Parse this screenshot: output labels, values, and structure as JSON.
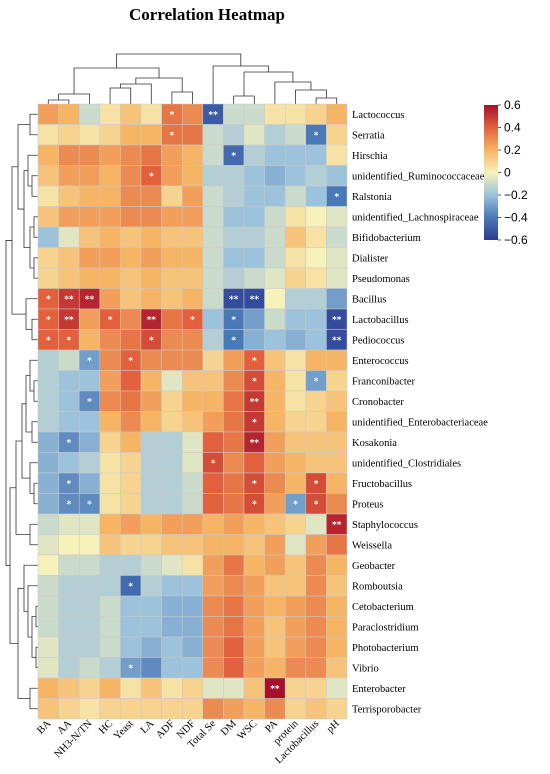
{
  "chart_data": {
    "type": "heatmap",
    "title": "Correlation Heatmap",
    "x_categories": [
      "BA",
      "AA",
      "NH3-N/TN",
      "HC",
      "Yeast",
      "LA",
      "ADF",
      "NDF",
      "Total Se",
      "DM",
      "WSC",
      "PA",
      "protein",
      "Lactobacillus",
      "pH"
    ],
    "y_categories": [
      "Lactococcus",
      "Serratia",
      "Hirschia",
      "unidentified_Ruminococcaceae",
      "Ralstonia",
      "unidentified_Lachnospiraceae",
      "Bifidobacterium",
      "Dialister",
      "Pseudomonas",
      "Bacillus",
      "Lactobacillus",
      "Pediococcus",
      "Enterococcus",
      "Franconibacter",
      "Cronobacter",
      "unidentified_Enterobacteriaceae",
      "Kosakonia",
      "unidentified_Clostridiales",
      "Fructobacillus",
      "Proteus",
      "Staphylococcus",
      "Weissella",
      "Geobacter",
      "Romboutsia",
      "Cetobacterium",
      "Paraclostridium",
      "Photobacterium",
      "Vibrio",
      "Enterobacter",
      "Terrisporobacter"
    ],
    "values": [
      [
        0.25,
        0.2,
        -0.1,
        0.05,
        0.15,
        0.05,
        0.35,
        0.3,
        -0.5,
        -0.1,
        -0.1,
        0.05,
        0.05,
        0.1,
        0.2
      ],
      [
        0.05,
        0.1,
        0.05,
        0.1,
        0.2,
        0.2,
        0.35,
        0.35,
        -0.1,
        -0.15,
        -0.05,
        -0.15,
        -0.1,
        -0.4,
        0.1
      ],
      [
        0.2,
        0.3,
        0.3,
        0.25,
        0.3,
        0.35,
        0.25,
        0.2,
        -0.1,
        -0.45,
        -0.15,
        -0.2,
        -0.2,
        -0.2,
        0.05
      ],
      [
        0.15,
        0.25,
        0.25,
        0.2,
        0.3,
        0.4,
        0.25,
        0.2,
        -0.15,
        -0.15,
        -0.2,
        -0.25,
        -0.2,
        -0.15,
        -0.2
      ],
      [
        0.05,
        0.15,
        0.2,
        0.2,
        0.3,
        0.3,
        0.1,
        0.25,
        -0.1,
        -0.15,
        -0.2,
        -0.2,
        -0.1,
        -0.2,
        -0.4
      ],
      [
        0.15,
        0.25,
        0.25,
        0.25,
        0.3,
        0.3,
        0.25,
        0.25,
        -0.1,
        -0.2,
        -0.2,
        -0.1,
        0.05,
        0.0,
        -0.05
      ],
      [
        -0.2,
        -0.05,
        0.15,
        0.2,
        0.15,
        0.2,
        0.15,
        0.15,
        -0.1,
        -0.15,
        -0.15,
        -0.1,
        0.15,
        0.05,
        -0.1
      ],
      [
        0.1,
        0.15,
        0.25,
        0.25,
        0.2,
        0.25,
        0.2,
        0.2,
        -0.1,
        -0.2,
        -0.2,
        -0.1,
        0.05,
        0.0,
        -0.05
      ],
      [
        0.1,
        0.15,
        0.2,
        0.2,
        0.15,
        0.2,
        0.15,
        0.15,
        -0.1,
        -0.15,
        -0.1,
        -0.05,
        0.1,
        0.05,
        -0.05
      ],
      [
        0.4,
        0.5,
        0.55,
        0.25,
        0.15,
        0.2,
        0.15,
        0.2,
        -0.1,
        -0.55,
        -0.55,
        0.0,
        -0.15,
        -0.15,
        -0.3
      ],
      [
        0.4,
        0.5,
        0.25,
        0.4,
        0.3,
        0.55,
        0.35,
        0.4,
        -0.2,
        -0.4,
        -0.3,
        -0.1,
        -0.2,
        -0.2,
        -0.55
      ],
      [
        0.4,
        0.4,
        0.2,
        0.3,
        0.35,
        0.45,
        0.3,
        0.3,
        -0.15,
        -0.4,
        -0.25,
        -0.2,
        -0.25,
        -0.2,
        -0.55
      ],
      [
        -0.15,
        -0.1,
        -0.3,
        0.3,
        0.4,
        0.3,
        0.3,
        0.3,
        0.1,
        0.25,
        0.4,
        0.15,
        0.05,
        0.2,
        0.2
      ],
      [
        -0.15,
        -0.2,
        -0.2,
        0.25,
        0.4,
        0.2,
        -0.05,
        0.15,
        0.15,
        0.3,
        0.45,
        0.2,
        0.05,
        -0.3,
        0.1
      ],
      [
        -0.15,
        -0.2,
        -0.35,
        0.3,
        0.35,
        0.25,
        0.1,
        0.2,
        0.2,
        0.35,
        0.5,
        0.2,
        0.05,
        0.1,
        0.15
      ],
      [
        -0.15,
        -0.2,
        -0.2,
        0.2,
        0.3,
        0.2,
        0.1,
        0.15,
        0.25,
        0.35,
        0.5,
        0.2,
        0.1,
        0.1,
        0.2
      ],
      [
        -0.25,
        -0.35,
        -0.25,
        0.1,
        0.2,
        -0.15,
        -0.15,
        -0.05,
        0.4,
        0.35,
        0.55,
        0.25,
        0.15,
        0.15,
        0.15
      ],
      [
        -0.25,
        -0.2,
        -0.15,
        0.05,
        0.1,
        -0.15,
        -0.15,
        -0.05,
        0.45,
        0.3,
        0.4,
        0.25,
        0.2,
        0.15,
        0.15
      ],
      [
        -0.25,
        -0.35,
        -0.25,
        0.05,
        0.1,
        -0.15,
        -0.15,
        -0.1,
        0.4,
        0.35,
        0.45,
        0.3,
        0.2,
        0.45,
        0.2
      ],
      [
        -0.25,
        -0.35,
        -0.35,
        0.05,
        0.1,
        -0.15,
        -0.15,
        -0.1,
        0.4,
        0.35,
        0.45,
        0.25,
        -0.3,
        0.45,
        0.3
      ],
      [
        -0.1,
        -0.05,
        -0.05,
        0.2,
        0.25,
        0.2,
        0.25,
        0.25,
        0.2,
        0.25,
        0.2,
        0.15,
        0.1,
        -0.05,
        0.55
      ],
      [
        -0.05,
        0.0,
        0.0,
        0.15,
        0.1,
        0.1,
        0.15,
        0.15,
        0.2,
        0.2,
        0.15,
        0.25,
        -0.05,
        0.25,
        0.35
      ],
      [
        0.0,
        -0.1,
        -0.1,
        -0.15,
        -0.15,
        -0.1,
        -0.05,
        0.05,
        0.25,
        0.35,
        0.2,
        0.25,
        0.15,
        0.3,
        0.2
      ],
      [
        -0.1,
        -0.15,
        -0.15,
        -0.15,
        -0.45,
        -0.15,
        -0.2,
        -0.2,
        0.25,
        0.3,
        0.25,
        0.15,
        0.15,
        0.3,
        0.15
      ],
      [
        -0.1,
        -0.15,
        -0.15,
        -0.1,
        -0.2,
        -0.2,
        -0.25,
        -0.25,
        0.3,
        0.35,
        0.25,
        0.2,
        0.25,
        0.3,
        0.2
      ],
      [
        -0.1,
        -0.15,
        -0.15,
        -0.1,
        -0.2,
        -0.2,
        -0.25,
        -0.25,
        0.3,
        0.35,
        0.25,
        0.15,
        0.25,
        0.3,
        0.2
      ],
      [
        -0.05,
        -0.15,
        -0.15,
        -0.1,
        -0.2,
        -0.25,
        -0.2,
        -0.25,
        0.3,
        0.4,
        0.25,
        0.15,
        0.25,
        0.3,
        0.2
      ],
      [
        -0.05,
        -0.15,
        -0.1,
        -0.15,
        -0.3,
        -0.35,
        -0.2,
        -0.2,
        0.3,
        0.4,
        0.25,
        0.2,
        0.3,
        0.3,
        0.15
      ],
      [
        0.2,
        0.15,
        0.1,
        0.2,
        0.05,
        0.15,
        0.05,
        0.1,
        -0.05,
        -0.05,
        0.15,
        0.6,
        0.1,
        0.1,
        -0.05
      ],
      [
        0.15,
        0.1,
        0.05,
        0.1,
        0.1,
        0.1,
        0.1,
        0.1,
        0.3,
        0.25,
        0.2,
        0.3,
        0.1,
        0.15,
        0.1
      ]
    ],
    "significance": [
      [
        "",
        "",
        "",
        "",
        "",
        "",
        "*",
        "",
        "**",
        "",
        "",
        "",
        "",
        "",
        ""
      ],
      [
        "",
        "",
        "",
        "",
        "",
        "",
        "*",
        "",
        "",
        "",
        "",
        "",
        "",
        "*",
        ""
      ],
      [
        "",
        "",
        "",
        "",
        "",
        "",
        "",
        "",
        "",
        "*",
        "",
        "",
        "",
        "",
        ""
      ],
      [
        "",
        "",
        "",
        "",
        "",
        "*",
        "",
        "",
        "",
        "",
        "",
        "",
        "",
        "",
        ""
      ],
      [
        "",
        "",
        "",
        "",
        "",
        "",
        "",
        "",
        "",
        "",
        "",
        "",
        "",
        "",
        "*"
      ],
      [
        "",
        "",
        "",
        "",
        "",
        "",
        "",
        "",
        "",
        "",
        "",
        "",
        "",
        "",
        ""
      ],
      [
        "",
        "",
        "",
        "",
        "",
        "",
        "",
        "",
        "",
        "",
        "",
        "",
        "",
        "",
        ""
      ],
      [
        "",
        "",
        "",
        "",
        "",
        "",
        "",
        "",
        "",
        "",
        "",
        "",
        "",
        "",
        ""
      ],
      [
        "",
        "",
        "",
        "",
        "",
        "",
        "",
        "",
        "",
        "",
        "",
        "",
        "",
        "",
        ""
      ],
      [
        "*",
        "**",
        "**",
        "",
        "",
        "",
        "",
        "",
        "",
        "**",
        "**",
        "",
        "",
        "",
        ""
      ],
      [
        "*",
        "**",
        "",
        "*",
        "",
        "**",
        "",
        "*",
        "",
        "*",
        "",
        "",
        "",
        "",
        "**"
      ],
      [
        "*",
        "*",
        "",
        "",
        "",
        "*",
        "",
        "",
        "",
        "*",
        "",
        "",
        "",
        "",
        "**"
      ],
      [
        "",
        "",
        "*",
        "",
        "*",
        "",
        "",
        "",
        "",
        "",
        "*",
        "",
        "",
        "",
        ""
      ],
      [
        "",
        "",
        "",
        "",
        "",
        "",
        "",
        "",
        "",
        "",
        "*",
        "",
        "",
        "*",
        ""
      ],
      [
        "",
        "",
        "*",
        "",
        "",
        "",
        "",
        "",
        "",
        "",
        "**",
        "",
        "",
        "",
        ""
      ],
      [
        "",
        "",
        "",
        "",
        "",
        "",
        "",
        "",
        "",
        "",
        "*",
        "",
        "",
        "",
        ""
      ],
      [
        "",
        "*",
        "",
        "",
        "",
        "",
        "",
        "",
        "",
        "",
        "**",
        "",
        "",
        "",
        ""
      ],
      [
        "",
        "",
        "",
        "",
        "",
        "",
        "",
        "",
        "*",
        "",
        "",
        "",
        "",
        "",
        ""
      ],
      [
        "",
        "*",
        "",
        "",
        "",
        "",
        "",
        "",
        "",
        "",
        "*",
        "",
        "",
        "*",
        ""
      ],
      [
        "",
        "*",
        "*",
        "",
        "",
        "",
        "",
        "",
        "",
        "",
        "*",
        "",
        "*",
        "*",
        ""
      ],
      [
        "",
        "",
        "",
        "",
        "",
        "",
        "",
        "",
        "",
        "",
        "",
        "",
        "",
        "",
        "**"
      ],
      [
        "",
        "",
        "",
        "",
        "",
        "",
        "",
        "",
        "",
        "",
        "",
        "",
        "",
        "",
        ""
      ],
      [
        "",
        "",
        "",
        "",
        "",
        "",
        "",
        "",
        "",
        "",
        "",
        "",
        "",
        "",
        ""
      ],
      [
        "",
        "",
        "",
        "",
        "*",
        "",
        "",
        "",
        "",
        "",
        "",
        "",
        "",
        "",
        ""
      ],
      [
        "",
        "",
        "",
        "",
        "",
        "",
        "",
        "",
        "",
        "",
        "",
        "",
        "",
        "",
        ""
      ],
      [
        "",
        "",
        "",
        "",
        "",
        "",
        "",
        "",
        "",
        "",
        "",
        "",
        "",
        "",
        ""
      ],
      [
        "",
        "",
        "",
        "",
        "",
        "",
        "",
        "",
        "",
        "",
        "",
        "",
        "",
        "",
        ""
      ],
      [
        "",
        "",
        "",
        "",
        "*",
        "",
        "",
        "",
        "",
        "",
        "",
        "",
        "",
        "",
        ""
      ],
      [
        "",
        "",
        "",
        "",
        "",
        "",
        "",
        "",
        "",
        "",
        "",
        "**",
        "",
        "",
        ""
      ],
      [
        "",
        "",
        "",
        "",
        "",
        "",
        "",
        "",
        "",
        "",
        "",
        "",
        "",
        "",
        ""
      ]
    ],
    "color_scale": {
      "range": [
        -0.6,
        0.6
      ],
      "ticks": [
        "0.6",
        "0.4",
        "0.2",
        "0",
        "−0.2",
        "−0.4",
        "−0.6"
      ],
      "stops": [
        "#2b3d91",
        "#4a79b8",
        "#9cc2dc",
        "#f7f1ba",
        "#f6b465",
        "#e2613c",
        "#a5112a"
      ]
    },
    "legend_placement": "top-right",
    "dendrograms": "row (left) and column (top)"
  }
}
